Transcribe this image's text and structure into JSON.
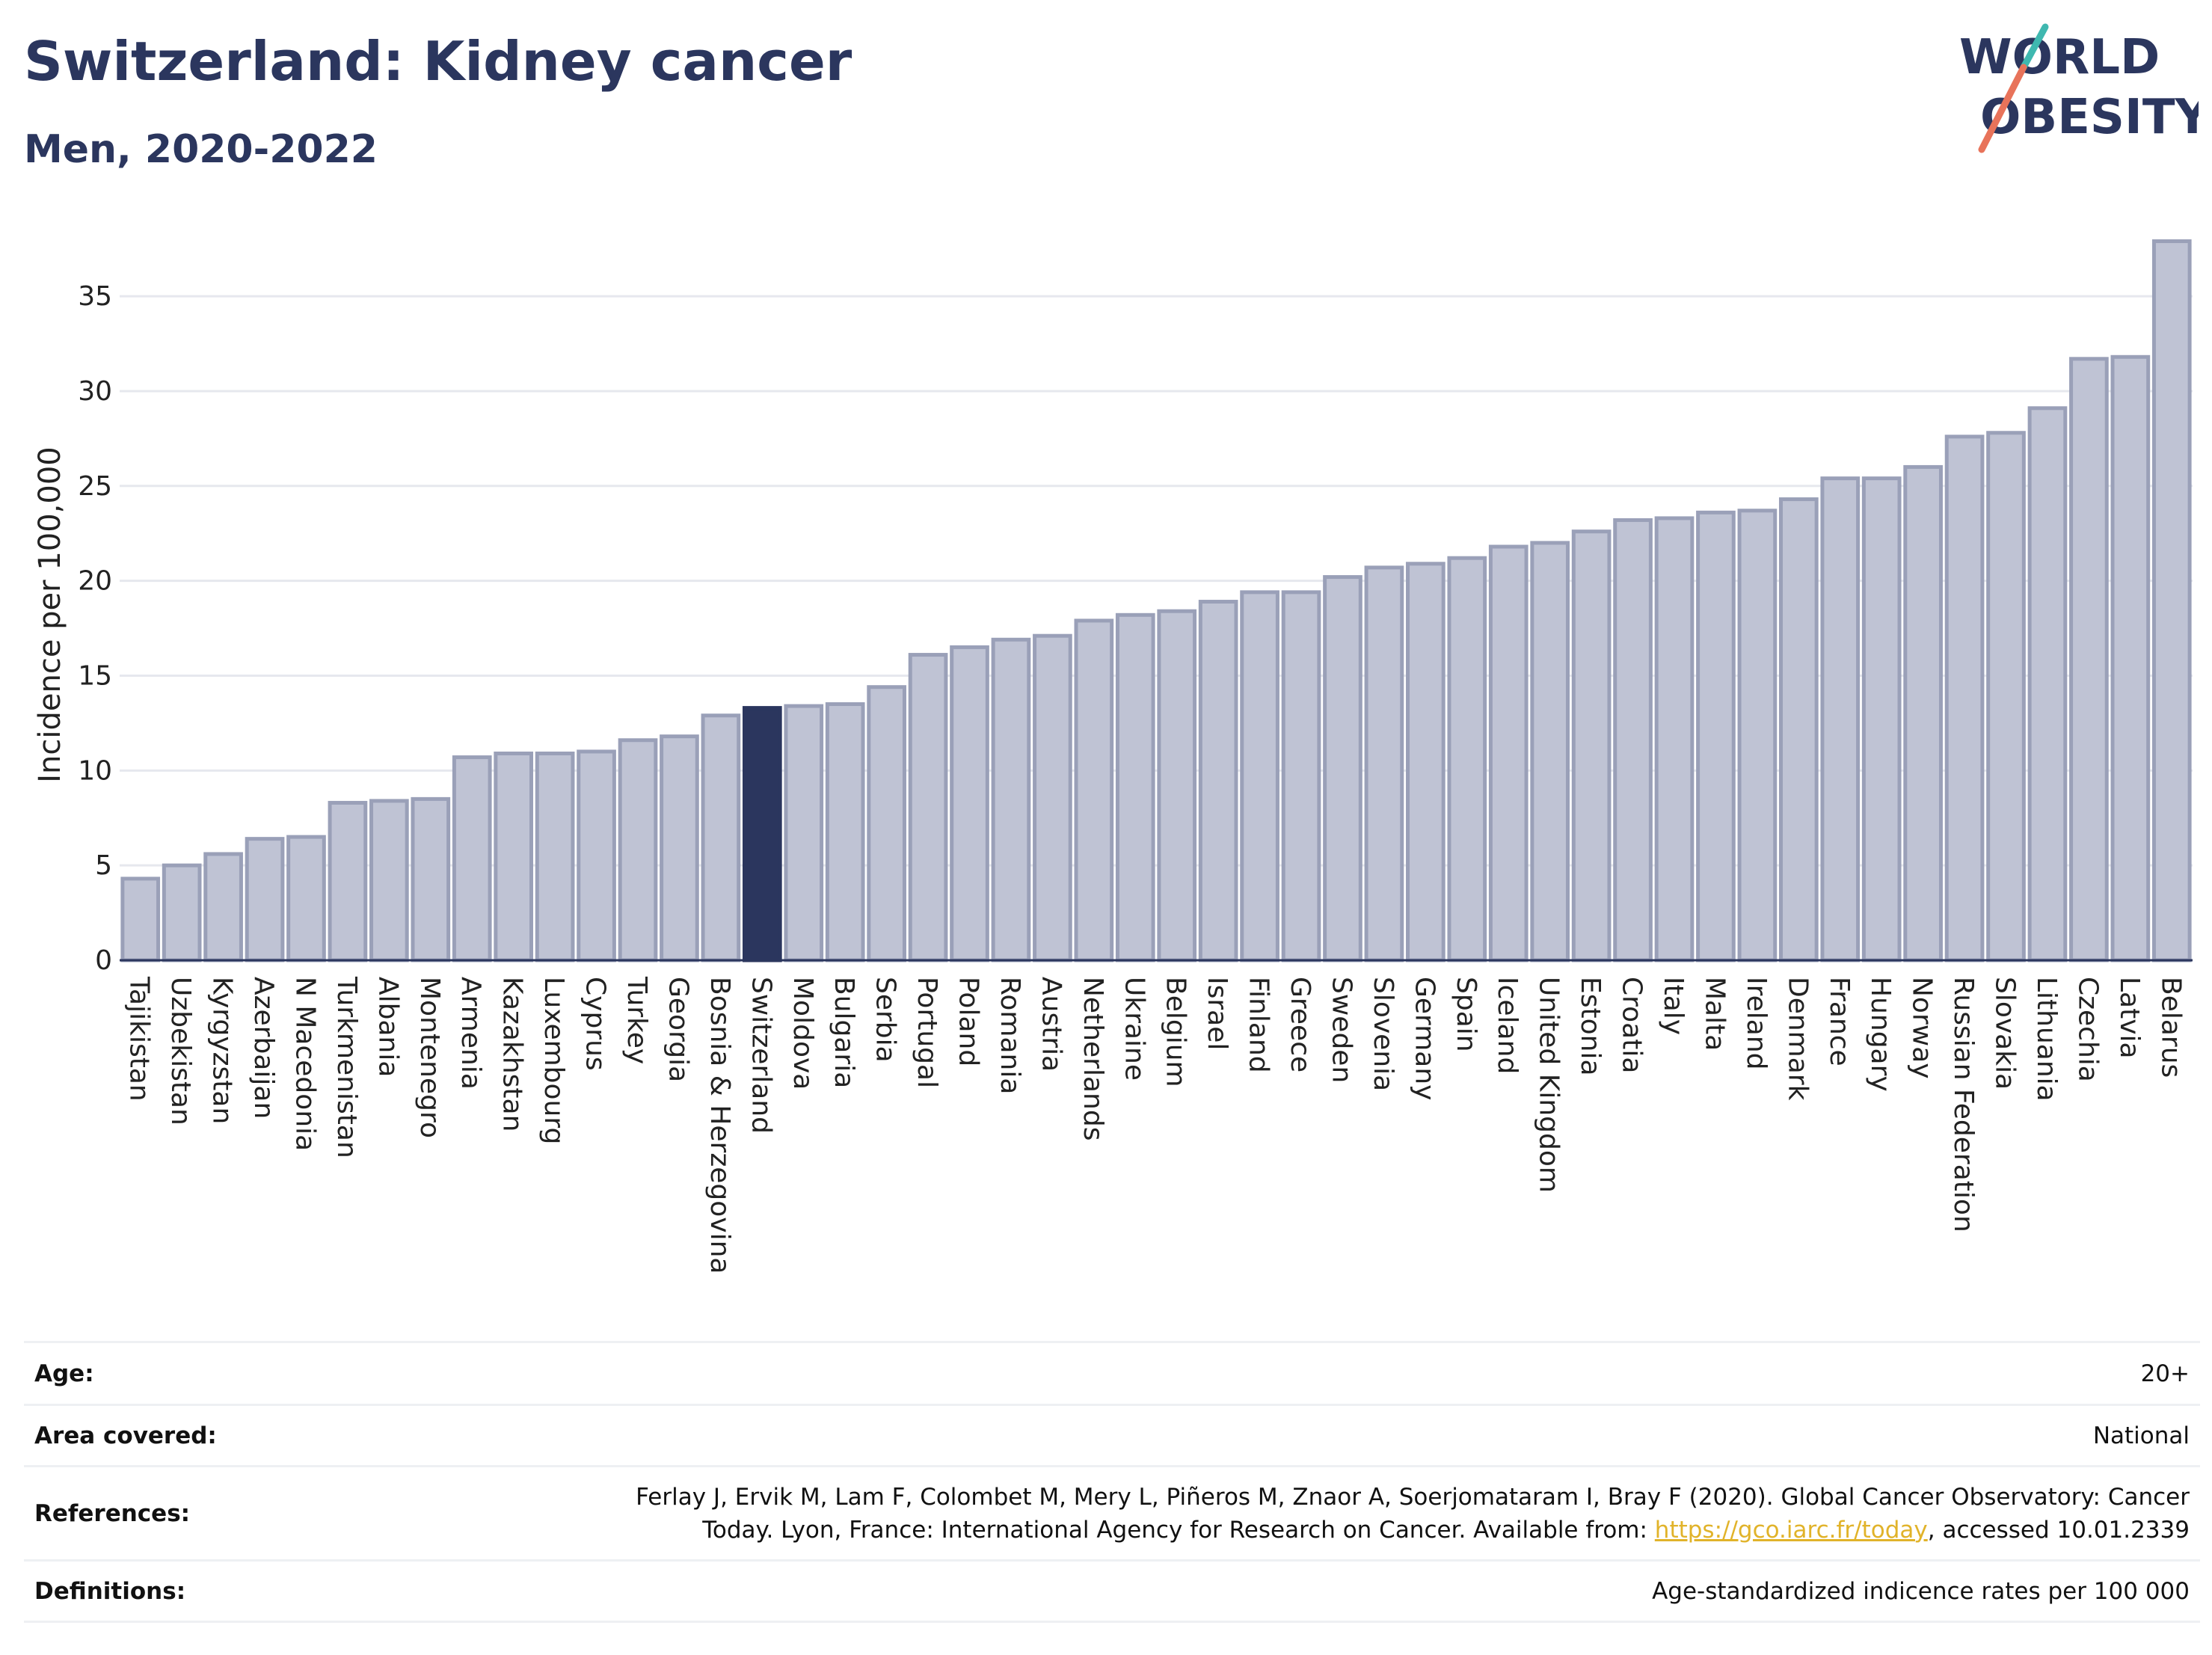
{
  "title": "Switzerland: Kidney cancer",
  "subtitle": "Men, 2020-2022",
  "logo": {
    "line1": "WORLD",
    "line2": "OBESITY",
    "accent_colors": [
      "#3fb8b0",
      "#e8735a"
    ]
  },
  "colors": {
    "bar": "#bfc3d4",
    "bar_stroke": "#9aa0b8",
    "highlight": "#2b365e",
    "grid": "#e6e8ee",
    "axis": "#2b365e"
  },
  "chart_data": {
    "type": "bar",
    "ylabel": "Incidence per 100,000",
    "ylim": [
      0,
      38
    ],
    "yticks": [
      0,
      5,
      10,
      15,
      20,
      25,
      30,
      35
    ],
    "highlight": "Switzerland",
    "categories": [
      "Tajikistan",
      "Uzbekistan",
      "Kyrgyzstan",
      "Azerbaijan",
      "N Macedonia",
      "Turkmenistan",
      "Albania",
      "Montenegro",
      "Armenia",
      "Kazakhstan",
      "Luxembourg",
      "Cyprus",
      "Turkey",
      "Georgia",
      "Bosnia & Herzegovina",
      "Switzerland",
      "Moldova",
      "Bulgaria",
      "Serbia",
      "Portugal",
      "Poland",
      "Romania",
      "Austria",
      "Netherlands",
      "Ukraine",
      "Belgium",
      "Israel",
      "Finland",
      "Greece",
      "Sweden",
      "Slovenia",
      "Germany",
      "Spain",
      "Iceland",
      "United Kingdom",
      "Estonia",
      "Croatia",
      "Italy",
      "Malta",
      "Ireland",
      "Denmark",
      "France",
      "Hungary",
      "Norway",
      "Russian Federation",
      "Slovakia",
      "Lithuania",
      "Czechia",
      "Latvia",
      "Belarus"
    ],
    "values": [
      4.3,
      5.0,
      5.6,
      6.4,
      6.5,
      8.3,
      8.4,
      8.5,
      10.7,
      10.9,
      10.9,
      11.0,
      11.6,
      11.8,
      12.9,
      13.3,
      13.4,
      13.5,
      14.4,
      16.1,
      16.5,
      16.9,
      17.1,
      17.9,
      18.2,
      18.4,
      18.9,
      19.4,
      19.4,
      20.2,
      20.7,
      20.9,
      21.2,
      21.8,
      22.0,
      22.6,
      23.2,
      23.3,
      23.6,
      23.7,
      24.3,
      25.4,
      25.4,
      26.0,
      27.6,
      27.8,
      29.1,
      31.7,
      31.8,
      37.9
    ]
  },
  "info": {
    "age_label": "Age:",
    "age_value": "20+",
    "area_label": "Area covered:",
    "area_value": "National",
    "references_label": "References:",
    "references_text_1": "Ferlay J, Ervik M, Lam F, Colombet M, Mery L, Piñeros M, Znaor A, Soerjomataram I, Bray F (2020). Global Cancer Observatory: Cancer",
    "references_text_2": "Today. Lyon, France: International Agency for Research on Cancer. Available from: ",
    "references_link": "https://gco.iarc.fr/today",
    "references_text_3": ", accessed 10.01.2339",
    "definitions_label": "Definitions:",
    "definitions_value": "Age-standardized indicence rates per 100 000"
  }
}
